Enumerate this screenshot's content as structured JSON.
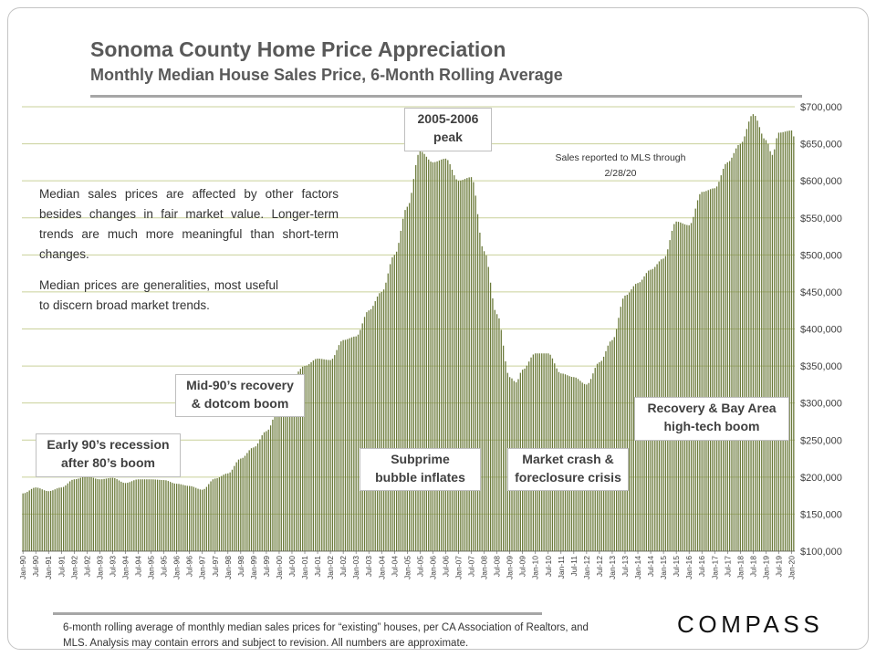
{
  "header": {
    "title": "Sonoma County Home Price Appreciation",
    "subtitle": "Monthly Median House Sales Price, 6-Month Rolling Average"
  },
  "notes": {
    "para1": "Median sales prices are affected by other factors besides changes in fair market value. Longer-term trends are much more meaningful than short-term changes.",
    "para2": "Median prices are generalities, most useful to discern broad market trends.",
    "sales_reported": "Sales reported to MLS through 2/28/20"
  },
  "annotations": {
    "peak": "2005-2006\npeak",
    "mid90": "Mid-90’s recovery\n& dotcom boom",
    "early90": "Early 90’s recession\nafter 80’s boom",
    "subprime": "Subprime\nbubble inflates",
    "crash": "Market crash &\nforeclosure crisis",
    "recovery": "Recovery & Bay Area\nhigh-tech boom"
  },
  "footnote": "6-month rolling average of monthly median sales prices for “existing” houses, per CA Association of Realtors, and MLS.  Analysis may contain errors and subject to revision. All numbers are approximate.",
  "logo": {
    "text": "COMPASS"
  },
  "colors": {
    "bar": "#6b7a3a",
    "grid": "#c9d19a",
    "axis": "#595959"
  },
  "chart_data": {
    "type": "bar",
    "title": "Sonoma County Home Price Appreciation",
    "subtitle": "Monthly Median House Sales Price, 6-Month Rolling Average",
    "x_start": "Jan-90",
    "x_end": "Feb-20",
    "frequency": "monthly",
    "ylim": [
      100000,
      700000
    ],
    "y_ticks": [
      100000,
      150000,
      200000,
      250000,
      300000,
      350000,
      400000,
      450000,
      500000,
      550000,
      600000,
      650000,
      700000
    ],
    "y_tick_labels": [
      "$100,000",
      "$150,000",
      "$200,000",
      "$250,000",
      "$300,000",
      "$350,000",
      "$400,000",
      "$450,000",
      "$500,000",
      "$550,000",
      "$600,000",
      "$650,000",
      "$700,000"
    ],
    "x_tick_labels": [
      "Jan-90",
      "Jul-90",
      "Jan-91",
      "Jul-91",
      "Jan-92",
      "Jul-92",
      "Jan-93",
      "Jul-93",
      "Jan-94",
      "Jul-94",
      "Jan-95",
      "Jul-95",
      "Jan-96",
      "Jul-96",
      "Jan-97",
      "Jul-97",
      "Jan-98",
      "Jul-98",
      "Jan-99",
      "Jul-99",
      "Jan-00",
      "Jul-00",
      "Jan-01",
      "Jul-01",
      "Jan-02",
      "Jul-02",
      "Jan-03",
      "Jul-03",
      "Jan-04",
      "Jul-04",
      "Jan-05",
      "Jul-05",
      "Jan-06",
      "Jul-06",
      "Jan-07",
      "Jul-07",
      "Jan-08",
      "Jul-08",
      "Jan-09",
      "Jul-09",
      "Jan-10",
      "Jul-10",
      "Jan-11",
      "Jul-11",
      "Jan-12",
      "Jul-12",
      "Jan-13",
      "Jul-13",
      "Jan-14",
      "Jul-14",
      "Jan-15",
      "Jul-15",
      "Jan-16",
      "Jul-16",
      "Jan-17",
      "Jul-17",
      "Jan-18",
      "Jul-18",
      "Jan-19",
      "Jul-19",
      "Jan-20"
    ],
    "grid": true,
    "y_axis_side": "right",
    "anchor_points": [
      [
        "Jan-90",
        178000
      ],
      [
        "Jul-90",
        186000
      ],
      [
        "Jan-91",
        181000
      ],
      [
        "Jul-91",
        186000
      ],
      [
        "Jan-92",
        197000
      ],
      [
        "Jul-92",
        201000
      ],
      [
        "Jan-93",
        197000
      ],
      [
        "Jul-93",
        199000
      ],
      [
        "Jan-94",
        192000
      ],
      [
        "Jul-94",
        197000
      ],
      [
        "Jan-95",
        197000
      ],
      [
        "Jul-95",
        196000
      ],
      [
        "Jan-96",
        191000
      ],
      [
        "Jul-96",
        188000
      ],
      [
        "Jan-97",
        183000
      ],
      [
        "Jul-97",
        198000
      ],
      [
        "Jan-98",
        205000
      ],
      [
        "Jul-98",
        225000
      ],
      [
        "Jan-99",
        240000
      ],
      [
        "Jul-99",
        262000
      ],
      [
        "Jan-00",
        293000
      ],
      [
        "Jul-00",
        335000
      ],
      [
        "Jan-01",
        350000
      ],
      [
        "Jul-01",
        360000
      ],
      [
        "Jan-02",
        358000
      ],
      [
        "Jul-02",
        385000
      ],
      [
        "Jan-03",
        390000
      ],
      [
        "Jul-03",
        425000
      ],
      [
        "Jan-04",
        450000
      ],
      [
        "Jul-04",
        500000
      ],
      [
        "Jan-05",
        565000
      ],
      [
        "Jul-05",
        640000
      ],
      [
        "Jan-06",
        625000
      ],
      [
        "Jul-06",
        630000
      ],
      [
        "Jan-07",
        600000
      ],
      [
        "Jul-07",
        605000
      ],
      [
        "Jan-08",
        505000
      ],
      [
        "Jul-08",
        420000
      ],
      [
        "Jan-09",
        335000
      ],
      [
        "Apr-09",
        328000
      ],
      [
        "Jul-09",
        345000
      ],
      [
        "Jan-10",
        367000
      ],
      [
        "Jul-10",
        367000
      ],
      [
        "Jan-11",
        340000
      ],
      [
        "Jul-11",
        335000
      ],
      [
        "Jan-12",
        325000
      ],
      [
        "Jul-12",
        355000
      ],
      [
        "Jan-13",
        385000
      ],
      [
        "Jul-13",
        445000
      ],
      [
        "Jan-14",
        462000
      ],
      [
        "Jul-14",
        480000
      ],
      [
        "Jan-15",
        495000
      ],
      [
        "Jul-15",
        545000
      ],
      [
        "Jan-16",
        540000
      ],
      [
        "Jul-16",
        585000
      ],
      [
        "Jan-17",
        590000
      ],
      [
        "Jul-17",
        625000
      ],
      [
        "Jan-18",
        650000
      ],
      [
        "Jul-18",
        690000
      ],
      [
        "Jan-19",
        655000
      ],
      [
        "Apr-19",
        635000
      ],
      [
        "Jul-19",
        665000
      ],
      [
        "Jan-20",
        668000
      ],
      [
        "Feb-20",
        660000
      ]
    ]
  }
}
